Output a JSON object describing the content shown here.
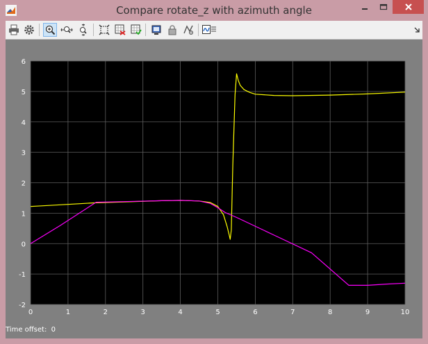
{
  "window": {
    "title": "Compare rotate_z  with azimuth angle",
    "colors": {
      "frame": "#c99ca6",
      "close": "#c75050",
      "plot_bg": "#000000",
      "figure_bg": "#808080"
    }
  },
  "toolbar": {
    "buttons": [
      {
        "name": "print-icon",
        "label": "Print"
      },
      {
        "name": "gear-icon",
        "label": "Parameters"
      },
      {
        "name": "zoom-in-icon",
        "label": "Zoom"
      },
      {
        "name": "zoom-x-icon",
        "label": "Zoom X-axis"
      },
      {
        "name": "zoom-y-icon",
        "label": "Zoom Y-axis"
      },
      {
        "name": "autoscale-icon",
        "label": "Autoscale"
      },
      {
        "name": "save-axes-icon",
        "label": "Save axes settings"
      },
      {
        "name": "restore-axes-icon",
        "label": "Restore saved axes settings"
      },
      {
        "name": "float-scope-icon",
        "label": "Floating scope"
      },
      {
        "name": "lock-icon",
        "label": "Lock axes selection"
      },
      {
        "name": "signal-selection-icon",
        "label": "Signal selection"
      },
      {
        "name": "signal-viewer-icon",
        "label": "Signal viewer"
      }
    ]
  },
  "status": {
    "time_offset_label": "Time offset:",
    "time_offset_value": "0"
  },
  "chart_data": {
    "type": "line",
    "title": "",
    "xlabel": "",
    "ylabel": "",
    "xlim": [
      0,
      10
    ],
    "ylim": [
      -2,
      6
    ],
    "grid": true,
    "xticks": [
      0,
      1,
      2,
      3,
      4,
      5,
      6,
      7,
      8,
      9,
      10
    ],
    "yticks": [
      -2,
      -1,
      0,
      1,
      2,
      3,
      4,
      5,
      6
    ],
    "series": [
      {
        "name": "rotate_z",
        "color": "#ffff00",
        "x": [
          0,
          1.0,
          1.7,
          2.5,
          3.5,
          4.0,
          4.5,
          4.8,
          5.0,
          5.15,
          5.25,
          5.3,
          5.33,
          5.36,
          5.4,
          5.46,
          5.5,
          5.55,
          5.6,
          5.7,
          5.85,
          6.0,
          6.5,
          7.0,
          8.0,
          9.0,
          10.0
        ],
        "y": [
          1.22,
          1.29,
          1.34,
          1.37,
          1.41,
          1.42,
          1.4,
          1.35,
          1.22,
          0.95,
          0.55,
          0.3,
          0.14,
          0.45,
          2.6,
          4.9,
          5.58,
          5.35,
          5.2,
          5.06,
          4.97,
          4.91,
          4.87,
          4.86,
          4.88,
          4.92,
          4.98
        ]
      },
      {
        "name": "azimuth angle",
        "color": "#ff00ff",
        "x": [
          0,
          0.8,
          1.75,
          2.5,
          3.5,
          4.0,
          4.5,
          4.8,
          5.0,
          5.2,
          5.5,
          6.5,
          7.5,
          8.5,
          9.0,
          9.5,
          10.0
        ],
        "y": [
          0,
          0.6,
          1.36,
          1.38,
          1.41,
          1.42,
          1.4,
          1.32,
          1.18,
          1.02,
          0.86,
          0.28,
          -0.3,
          -1.37,
          -1.37,
          -1.33,
          -1.3
        ]
      }
    ]
  }
}
